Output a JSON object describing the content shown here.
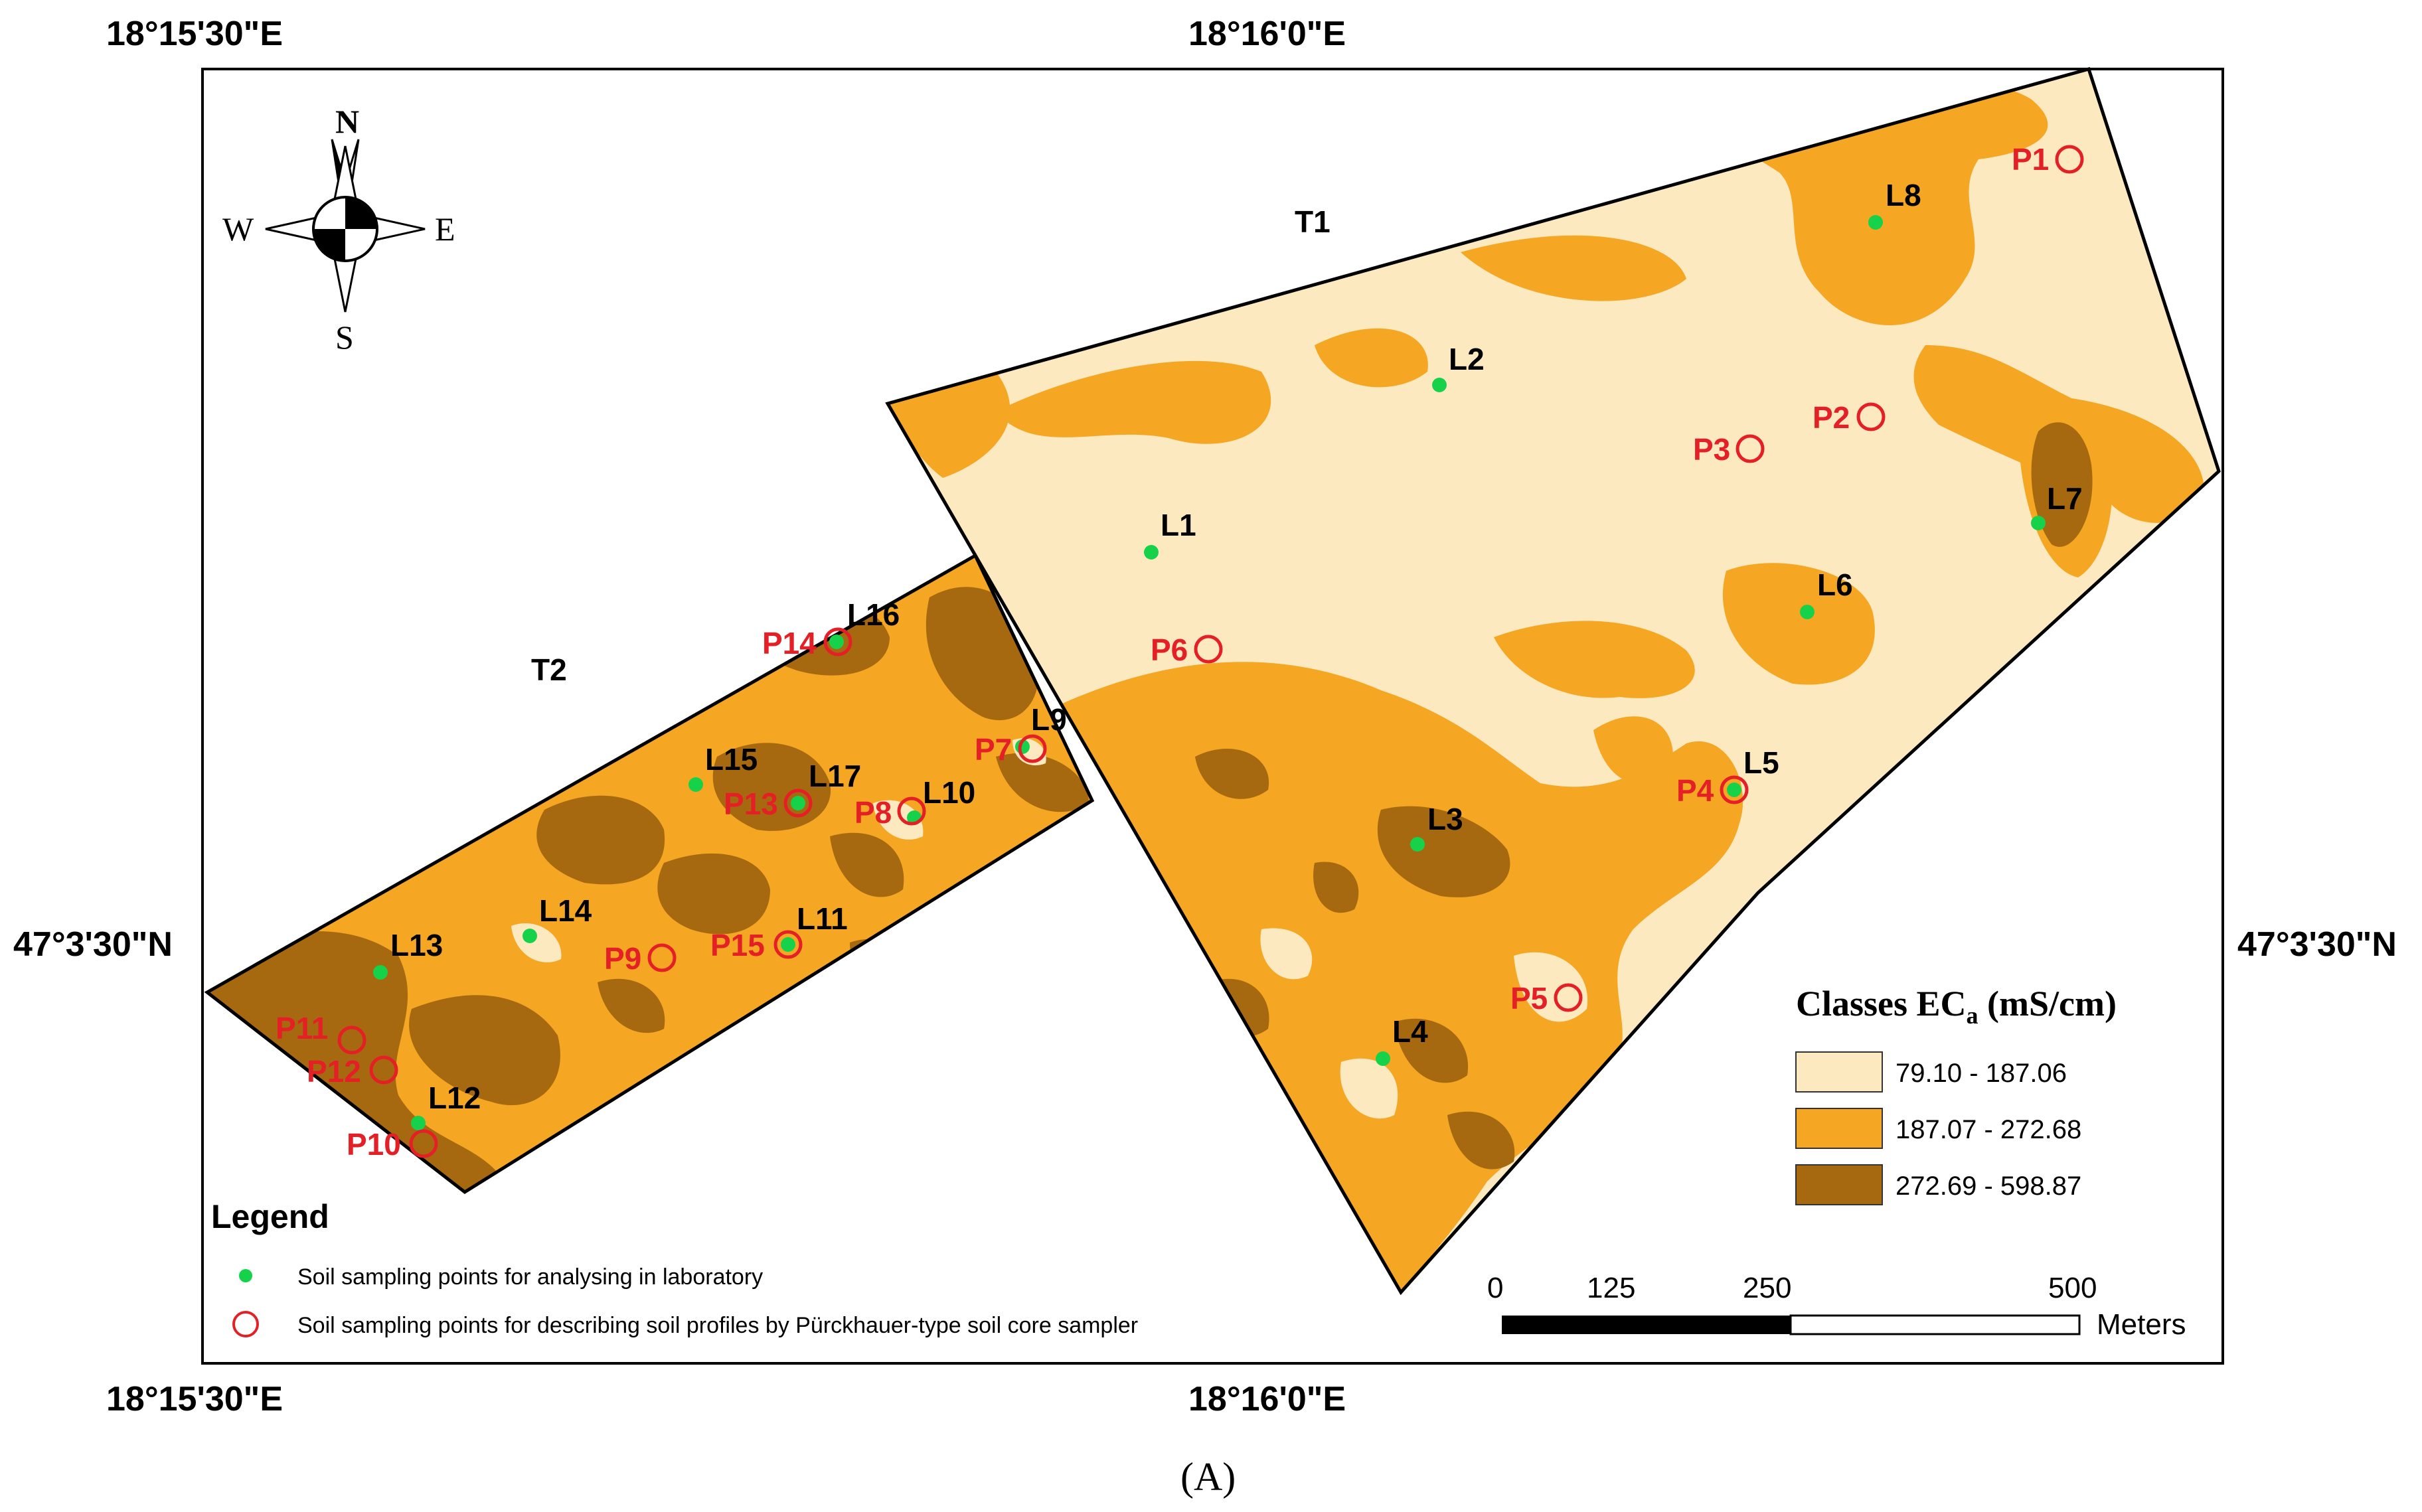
{
  "coordinates": {
    "top_left": "18°15'30\"E",
    "top_center": "18°16'0\"E",
    "bottom_left": "18°15'30\"E",
    "bottom_center": "18°16'0\"E",
    "left_middle": "47°3'30\"N",
    "right_middle": "47°3'30\"N"
  },
  "compass": {
    "north": "N",
    "south": "S",
    "east": "E",
    "west": "W"
  },
  "fields": {
    "t1": "T1",
    "t2": "T2"
  },
  "colors": {
    "low": "#fde9bf",
    "mid": "#f5a623",
    "high": "#a6690f",
    "lab_point": "#16d24a",
    "profile_point": "#e41f26"
  },
  "lab_points": [
    "L1",
    "L2",
    "L3",
    "L4",
    "L5",
    "L6",
    "L7",
    "L8",
    "L9",
    "L10",
    "L11",
    "L12",
    "L13",
    "L14",
    "L15",
    "L16",
    "L17"
  ],
  "profile_points": [
    "P1",
    "P2",
    "P3",
    "P4",
    "P5",
    "P6",
    "P7",
    "P8",
    "P9",
    "P10",
    "P11",
    "P12",
    "P13",
    "P14",
    "P15"
  ],
  "classes_legend": {
    "title_prefix": "Classes EC",
    "title_sub": "a",
    "title_unit": " (mS/cm)",
    "ranges": [
      "79.10 - 187.06",
      "187.07 - 272.68",
      "272.69 - 598.87"
    ]
  },
  "legend": {
    "heading": "Legend",
    "lab_item": "Soil sampling points for analysing in laboratory",
    "profile_item": "Soil sampling points for describing soil profiles by Pürckhauer-type soil core sampler"
  },
  "scale_bar": {
    "ticks": [
      "0",
      "125",
      "250",
      "500"
    ],
    "unit": "Meters"
  },
  "caption": "(A)"
}
